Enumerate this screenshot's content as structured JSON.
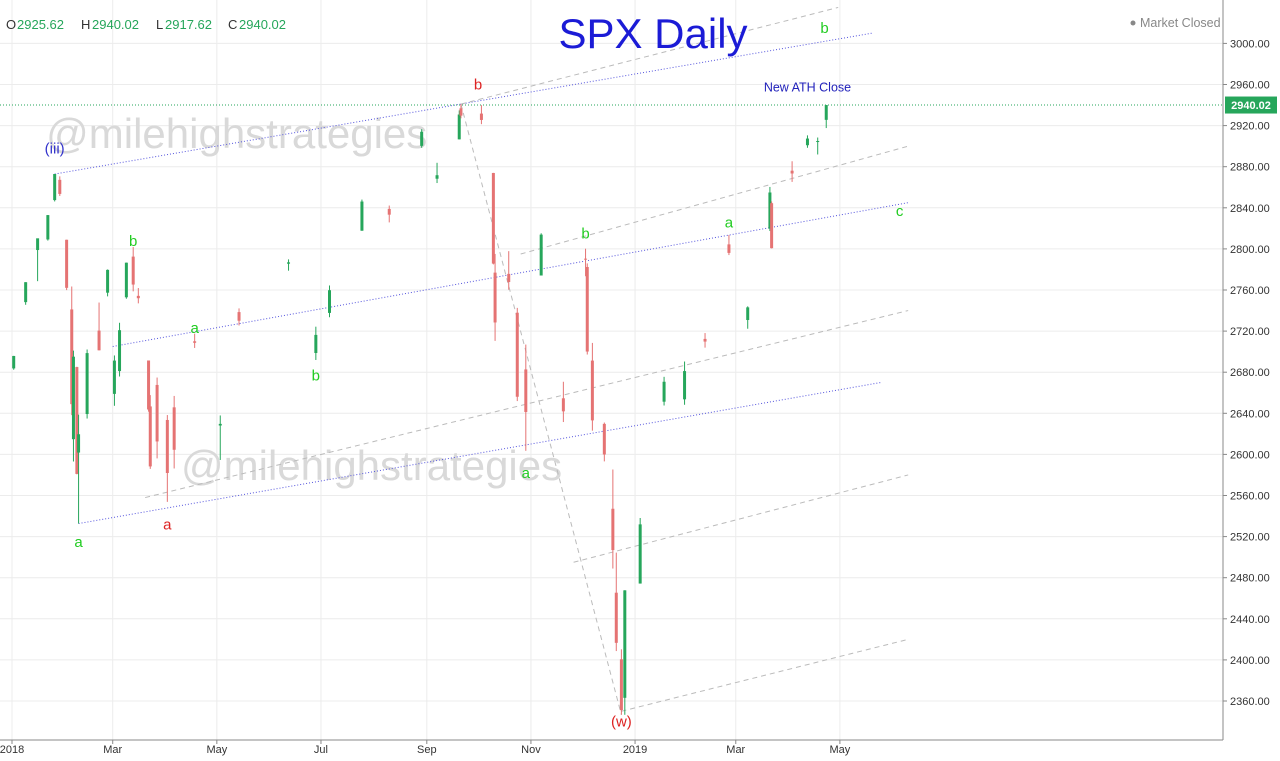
{
  "ohlc": [
    {
      "key": "O",
      "value": "2925.62"
    },
    {
      "key": "H",
      "value": "2940.02"
    },
    {
      "key": "L",
      "value": "2917.62"
    },
    {
      "key": "C",
      "value": "2940.02"
    }
  ],
  "status": {
    "text": "Market Closed"
  },
  "watermark": "@milehighstrategies",
  "chart_data": {
    "type": "candlestick",
    "title": "SPX Daily",
    "ylim": [
      2320,
      3020
    ],
    "y_ticks": [
      2360,
      2400,
      2440,
      2480,
      2520,
      2560,
      2600,
      2640,
      2680,
      2720,
      2760,
      2800,
      2840,
      2880,
      2920,
      2960,
      3000
    ],
    "x_ticks": [
      {
        "date": "2018-01-01",
        "label": "2018"
      },
      {
        "date": "2018-03-01",
        "label": "Mar"
      },
      {
        "date": "2018-05-01",
        "label": "May"
      },
      {
        "date": "2018-07-01",
        "label": "Jul"
      },
      {
        "date": "2018-09-01",
        "label": "Sep"
      },
      {
        "date": "2018-11-01",
        "label": "Nov"
      },
      {
        "date": "2019-01-01",
        "label": "2019"
      },
      {
        "date": "2019-03-01",
        "label": "Mar"
      },
      {
        "date": "2019-05-01",
        "label": "May"
      }
    ],
    "last_price": {
      "value": 2940.02,
      "label": "2940.02"
    },
    "annotations": [
      {
        "text": "New ATH Close",
        "date": "2019-04-12",
        "value": 2953,
        "color": "#2222bb"
      }
    ],
    "wave_labels": [
      {
        "text": "(iii)",
        "date": "2018-01-26",
        "value": 2893,
        "color": "#3333cc"
      },
      {
        "text": "a",
        "date": "2018-02-09",
        "value": 2510,
        "color": "#22cc22"
      },
      {
        "text": "b",
        "date": "2018-03-13",
        "value": 2803,
        "color": "#22cc22"
      },
      {
        "text": "a",
        "date": "2018-04-02",
        "value": 2527,
        "color": "#dd2222"
      },
      {
        "text": "a",
        "date": "2018-04-18",
        "value": 2718,
        "color": "#22cc22"
      },
      {
        "text": "b",
        "date": "2018-06-28",
        "value": 2672,
        "color": "#22cc22"
      },
      {
        "text": "b",
        "date": "2018-10-01",
        "value": 2955,
        "color": "#dd2222"
      },
      {
        "text": "a",
        "date": "2018-10-29",
        "value": 2577,
        "color": "#22cc22"
      },
      {
        "text": "b",
        "date": "2018-12-03",
        "value": 2810,
        "color": "#22cc22"
      },
      {
        "text": "(w)",
        "date": "2018-12-24",
        "value": 2335,
        "color": "#dd2222"
      },
      {
        "text": "a",
        "date": "2019-02-25",
        "value": 2821,
        "color": "#22cc22"
      },
      {
        "text": "b",
        "date": "2019-04-22",
        "value": 3010,
        "color": "#22cc22"
      },
      {
        "text": "c",
        "date": "2019-06-05",
        "value": 2832,
        "color": "#22cc22"
      }
    ],
    "trendlines": [
      {
        "from": [
          "2018-01-26",
          2872.87
        ],
        "to": [
          "2019-05-20",
          3010
        ],
        "style": "dotted",
        "color": "#5555dd"
      },
      {
        "from": [
          "2018-03-01",
          2705
        ],
        "to": [
          "2019-06-10",
          2845
        ],
        "style": "dotted",
        "color": "#5555dd"
      },
      {
        "from": [
          "2018-02-09",
          2532.69
        ],
        "to": [
          "2019-05-25",
          2670
        ],
        "style": "dotted",
        "color": "#5555dd"
      },
      {
        "from": [
          "2018-09-21",
          2940.9
        ],
        "to": [
          "2019-04-30",
          3035
        ],
        "style": "dashed",
        "color": "#bbbbbb"
      },
      {
        "from": [
          "2018-10-26",
          2795
        ],
        "to": [
          "2019-06-10",
          2900
        ],
        "style": "dashed",
        "color": "#bbbbbb"
      },
      {
        "from": [
          "2018-03-20",
          2558
        ],
        "to": [
          "2019-06-10",
          2740
        ],
        "style": "dashed",
        "color": "#bbbbbb"
      },
      {
        "from": [
          "2018-11-26",
          2495
        ],
        "to": [
          "2019-06-10",
          2580
        ],
        "style": "dashed",
        "color": "#bbbbbb"
      },
      {
        "from": [
          "2018-12-24",
          2350
        ],
        "to": [
          "2019-06-10",
          2420
        ],
        "style": "dashed",
        "color": "#bbbbbb"
      },
      {
        "from": [
          "2018-09-21",
          2940.9
        ],
        "to": [
          "2018-12-24",
          2346.58
        ],
        "style": "dashed",
        "color": "#bbbbbb"
      }
    ],
    "series": [
      {
        "name": "SPX",
        "points": [
          [
            "2018-01-02",
            2683.7,
            2695.9,
            2682.4,
            2695.8
          ],
          [
            "2018-01-09",
            2748.2,
            2767.6,
            2745.6,
            2767.6
          ],
          [
            "2018-01-16",
            2798.9,
            2807.5,
            2768.6,
            2810.3
          ],
          [
            "2018-01-22",
            2809.2,
            2833.0,
            2808.1,
            2832.9
          ],
          [
            "2018-01-26",
            2847.5,
            2872.9,
            2846.2,
            2872.9
          ],
          [
            "2018-01-29",
            2867.2,
            2870.6,
            2851.5,
            2853.5
          ],
          [
            "2018-02-02",
            2808.9,
            2808.9,
            2759.9,
            2762.1
          ],
          [
            "2018-02-05",
            2741.1,
            2763.4,
            2638.2,
            2648.9
          ],
          [
            "2018-02-06",
            2614.8,
            2701.0,
            2593.1,
            2695.1
          ],
          [
            "2018-02-08",
            2685.0,
            2685.3,
            2580.6,
            2581.0
          ],
          [
            "2018-02-09",
            2601.8,
            2638.7,
            2532.7,
            2619.6
          ],
          [
            "2018-02-14",
            2639.3,
            2702.1,
            2634.9,
            2698.6
          ],
          [
            "2018-02-21",
            2720.5,
            2747.8,
            2701.3,
            2701.3
          ],
          [
            "2018-02-26",
            2757.4,
            2780.0,
            2753.8,
            2779.6
          ],
          [
            "2018-03-02",
            2658.9,
            2696.3,
            2647.3,
            2691.3
          ],
          [
            "2018-03-05",
            2681.1,
            2728.1,
            2675.8,
            2720.9
          ],
          [
            "2018-03-09",
            2752.9,
            2786.6,
            2751.5,
            2786.6
          ],
          [
            "2018-03-13",
            2792.5,
            2801.9,
            2758.7,
            2765.3
          ],
          [
            "2018-03-16",
            2754.3,
            2761.9,
            2747.0,
            2752.0
          ],
          [
            "2018-03-22",
            2691.4,
            2691.4,
            2641.6,
            2643.7
          ],
          [
            "2018-03-23",
            2646.7,
            2657.7,
            2585.9,
            2588.3
          ],
          [
            "2018-03-27",
            2667.6,
            2674.8,
            2596.1,
            2612.6
          ],
          [
            "2018-04-02",
            2633.5,
            2638.3,
            2553.8,
            2581.9
          ],
          [
            "2018-04-06",
            2645.8,
            2656.9,
            2586.3,
            2604.5
          ],
          [
            "2018-04-18",
            2710.1,
            2717.5,
            2703.6,
            2708.6
          ],
          [
            "2018-05-03",
            2628.1,
            2637.9,
            2594.6,
            2629.7
          ],
          [
            "2018-05-14",
            2738.5,
            2742.1,
            2725.5,
            2730.1
          ],
          [
            "2018-06-12",
            2785.6,
            2789.8,
            2778.8,
            2786.9
          ],
          [
            "2018-06-28",
            2698.7,
            2724.3,
            2691.9,
            2716.3
          ],
          [
            "2018-07-06",
            2737.7,
            2764.4,
            2733.5,
            2759.8
          ],
          [
            "2018-07-25",
            2817.7,
            2848.0,
            2817.7,
            2846.1
          ],
          [
            "2018-08-10",
            2838.9,
            2842.2,
            2825.8,
            2833.3
          ],
          [
            "2018-08-29",
            2900.3,
            2916.5,
            2898.4,
            2914.0
          ],
          [
            "2018-09-07",
            2868.3,
            2883.8,
            2864.1,
            2871.7
          ],
          [
            "2018-09-20",
            2906.6,
            2934.8,
            2906.6,
            2930.8
          ],
          [
            "2018-09-21",
            2936.8,
            2940.9,
            2927.1,
            2929.7
          ],
          [
            "2018-10-03",
            2931.7,
            2939.9,
            2921.4,
            2925.5
          ],
          [
            "2018-10-10",
            2873.9,
            2874.0,
            2784.9,
            2785.7
          ],
          [
            "2018-10-11",
            2776.9,
            2795.1,
            2710.5,
            2728.4
          ],
          [
            "2018-10-19",
            2775.7,
            2797.8,
            2760.3,
            2767.8
          ],
          [
            "2018-10-24",
            2737.9,
            2742.6,
            2651.9,
            2656.1
          ],
          [
            "2018-10-29",
            2682.7,
            2706.9,
            2603.5,
            2641.3
          ],
          [
            "2018-11-07",
            2774.1,
            2815.2,
            2774.1,
            2813.9
          ],
          [
            "2018-11-20",
            2654.6,
            2670.7,
            2631.5,
            2641.9
          ],
          [
            "2018-12-03",
            2790.5,
            2800.2,
            2773.4,
            2790.4
          ],
          [
            "2018-12-04",
            2782.4,
            2785.9,
            2697.2,
            2700.1
          ],
          [
            "2018-12-07",
            2691.3,
            2708.5,
            2623.1,
            2633.1
          ],
          [
            "2018-12-14",
            2629.7,
            2631.0,
            2593.2,
            2599.9
          ],
          [
            "2018-12-19",
            2547.1,
            2585.3,
            2488.9,
            2506.9
          ],
          [
            "2018-12-21",
            2465.4,
            2504.4,
            2408.6,
            2416.6
          ],
          [
            "2018-12-24",
            2400.6,
            2410.3,
            2346.6,
            2351.1
          ],
          [
            "2018-12-26",
            2363.1,
            2467.8,
            2346.6,
            2467.7
          ],
          [
            "2019-01-04",
            2474.3,
            2538.1,
            2474.3,
            2531.9
          ],
          [
            "2019-01-18",
            2651.3,
            2675.5,
            2647.6,
            2670.7
          ],
          [
            "2019-01-30",
            2653.6,
            2690.4,
            2648.3,
            2681.1
          ],
          [
            "2019-02-11",
            2712.4,
            2718.1,
            2703.9,
            2709.8
          ],
          [
            "2019-02-25",
            2804.4,
            2813.5,
            2794.0,
            2796.1
          ],
          [
            "2019-03-08",
            2730.8,
            2744.1,
            2722.3,
            2743.1
          ],
          [
            "2019-03-21",
            2819.7,
            2860.3,
            2817.4,
            2854.9
          ],
          [
            "2019-03-22",
            2844.5,
            2846.2,
            2800.5,
            2800.7
          ],
          [
            "2019-04-03",
            2876.1,
            2885.3,
            2865.2,
            2873.4
          ],
          [
            "2019-04-12",
            2900.9,
            2910.5,
            2898.4,
            2907.4
          ],
          [
            "2019-04-18",
            2904.8,
            2908.4,
            2891.9,
            2905.0
          ],
          [
            "2019-04-23",
            2925.6,
            2940.0,
            2917.6,
            2940.0
          ]
        ]
      }
    ],
    "colors": {
      "up": "#26a65b",
      "down": "#e57373",
      "grid": "#ececec",
      "title": "#1b1bd6",
      "price_line": "#26a65b"
    }
  }
}
